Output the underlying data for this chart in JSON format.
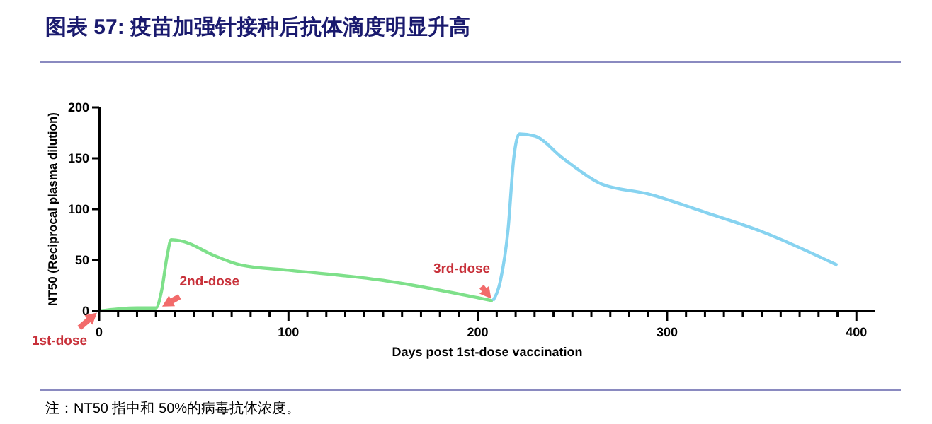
{
  "chart_data": {
    "type": "line",
    "title": "图表 57: 疫苗加强针接种后抗体滴度明显升高",
    "xlabel": "Days post 1st-dose vaccination",
    "ylabel": "NT50 (Reciprocal plasma dilution)",
    "xlim": [
      0,
      410
    ],
    "ylim": [
      0,
      200
    ],
    "xticks": [
      0,
      {
        "value": 10,
        "label": null
      },
      {
        "value": 20,
        "label": null
      },
      {
        "value": 30,
        "label": null
      },
      {
        "value": 40,
        "label": null
      },
      {
        "value": 50,
        "label": null
      },
      {
        "value": 60,
        "label": null
      },
      {
        "value": 70,
        "label": null
      },
      {
        "value": 80,
        "label": null
      },
      {
        "value": 90,
        "label": null
      },
      100,
      {
        "value": 110,
        "label": null
      },
      {
        "value": 120,
        "label": null
      },
      {
        "value": 130,
        "label": null
      },
      {
        "value": 140,
        "label": null
      },
      {
        "value": 150,
        "label": null
      },
      {
        "value": 160,
        "label": null
      },
      {
        "value": 170,
        "label": null
      },
      {
        "value": 180,
        "label": null
      },
      {
        "value": 190,
        "label": null
      },
      200,
      {
        "value": 210,
        "label": null
      },
      {
        "value": 220,
        "label": null
      },
      {
        "value": 230,
        "label": null
      },
      {
        "value": 240,
        "label": null
      },
      {
        "value": 250,
        "label": null
      },
      {
        "value": 260,
        "label": null
      },
      {
        "value": 270,
        "label": null
      },
      {
        "value": 280,
        "label": null
      },
      {
        "value": 290,
        "label": null
      },
      300,
      {
        "value": 310,
        "label": null
      },
      {
        "value": 320,
        "label": null
      },
      {
        "value": 330,
        "label": null
      },
      {
        "value": 340,
        "label": null
      },
      {
        "value": 350,
        "label": null
      },
      {
        "value": 360,
        "label": null
      },
      {
        "value": 370,
        "label": null
      },
      {
        "value": 380,
        "label": null
      },
      {
        "value": 390,
        "label": null
      },
      400
    ],
    "yticks": [
      0,
      50,
      100,
      150,
      200
    ],
    "marker": "none",
    "line_style": "solid",
    "series": [
      {
        "color": "#7ee08a",
        "x": [
          0,
          10,
          20,
          30,
          33,
          36,
          38,
          45,
          60,
          75,
          100,
          150,
          200,
          208
        ],
        "values": [
          0,
          2,
          3,
          3,
          20,
          55,
          70,
          68,
          55,
          45,
          40,
          30,
          13,
          10
        ]
      },
      {
        "color": "#87d3f0",
        "x": [
          208,
          212,
          216,
          219,
          222,
          230,
          245,
          265,
          290,
          320,
          350,
          390
        ],
        "values": [
          10,
          30,
          80,
          150,
          174,
          172,
          150,
          125,
          115,
          97,
          78,
          45
        ]
      }
    ],
    "annotations": [
      {
        "text": "1st-dose",
        "x": 0,
        "y": 0
      },
      {
        "text": "2nd-dose",
        "x": 32,
        "y": 3
      },
      {
        "text": "3rd-dose",
        "x": 208,
        "y": 10
      },
      "注：NT50 指中和 50%的病毒抗体浓度。"
    ]
  }
}
